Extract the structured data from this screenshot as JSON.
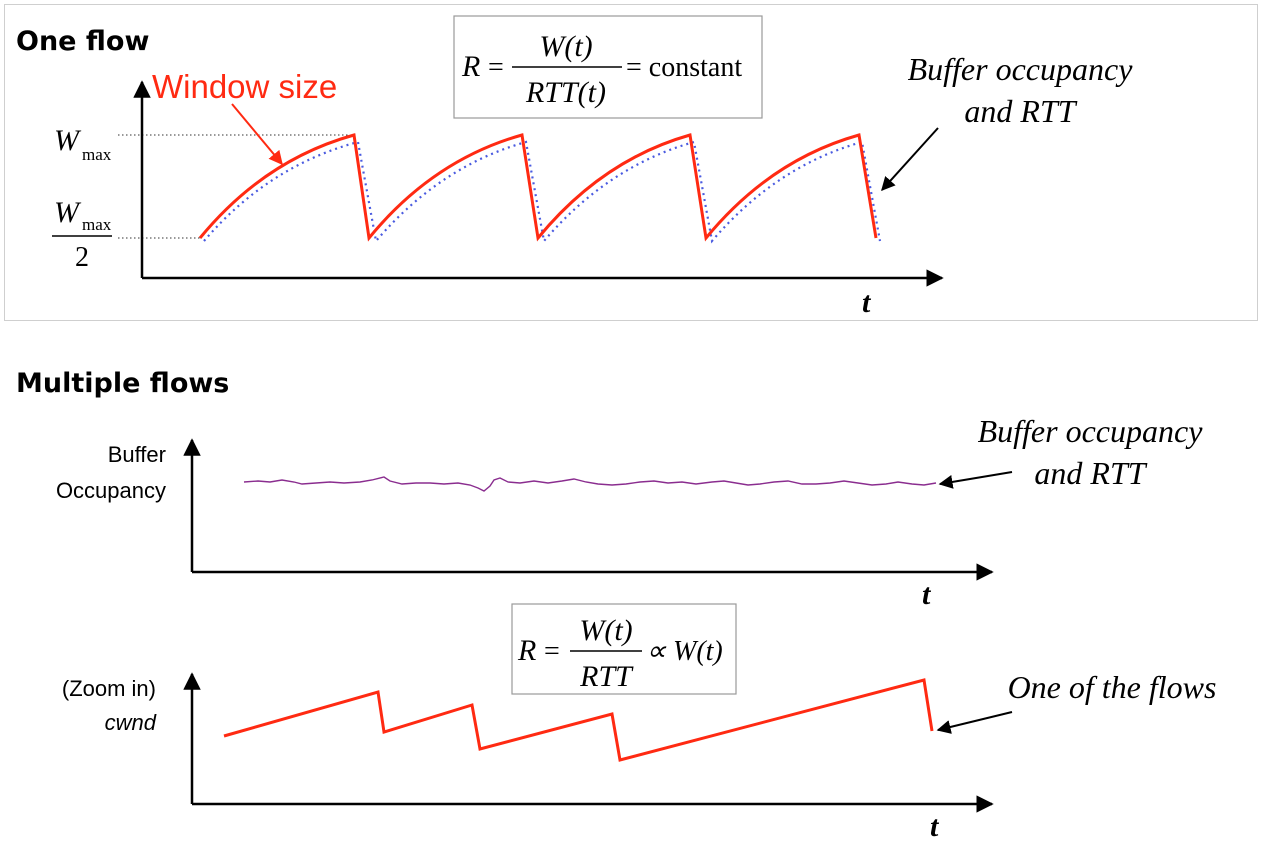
{
  "colors": {
    "window": "#ff2a12",
    "occupancy_dotted": "#4a5be0",
    "buffer_line": "#8a2d8f",
    "axis": "#000000"
  },
  "one_flow": {
    "title": "One flow",
    "window_label": "Window size",
    "formula": {
      "lhs": "R",
      "eq": "=",
      "num": "W(t)",
      "den": "RTT(t)",
      "rhs": "= constant"
    },
    "wmax": {
      "w": "W",
      "sub": "max"
    },
    "whalf": {
      "w": "W",
      "sub": "max",
      "den": "2"
    },
    "annotation": [
      "Buffer occupancy",
      "and RTT"
    ],
    "x_axis_label": "t"
  },
  "multiple_flows": {
    "title": "Multiple flows",
    "buffer_ylabel": [
      "Buffer",
      "Occupancy"
    ],
    "buffer_annotation": [
      "Buffer occupancy",
      "and RTT"
    ],
    "x_axis_label_1": "t",
    "formula": {
      "lhs": "R",
      "eq": "=",
      "num": "W(t)",
      "den": "RTT",
      "rhs": "∝ W(t)"
    },
    "cwnd_ylabel": [
      "(Zoom in)",
      "cwnd"
    ],
    "flow_annotation": "One of the flows",
    "x_axis_label_2": "t"
  }
}
